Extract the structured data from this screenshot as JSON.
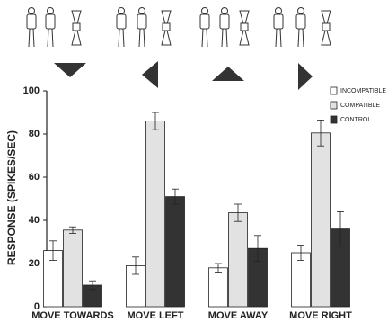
{
  "chart_data": {
    "type": "bar",
    "ylabel": "RESPONSE (SPIKES/SEC)",
    "categories": [
      "MOVE TOWARDS",
      "MOVE LEFT",
      "MOVE AWAY",
      "MOVE RIGHT"
    ],
    "series": [
      {
        "name": "INCOMPATIBLE",
        "color": "#ffffff",
        "values": [
          26,
          19,
          18,
          25
        ],
        "errors": [
          4.5,
          4,
          2,
          3.5
        ]
      },
      {
        "name": "COMPATIBLE",
        "color": "#e2e2e2",
        "values": [
          35.5,
          86,
          43.5,
          80.5
        ],
        "errors": [
          1.5,
          4,
          4,
          6
        ]
      },
      {
        "name": "CONTROL",
        "color": "#333333",
        "values": [
          10,
          51,
          27,
          36
        ],
        "errors": [
          2,
          3.5,
          6,
          8
        ]
      }
    ],
    "ylim": [
      0,
      100
    ],
    "yticks": [
      0,
      20,
      40,
      60,
      80,
      100
    ],
    "grid": false
  }
}
